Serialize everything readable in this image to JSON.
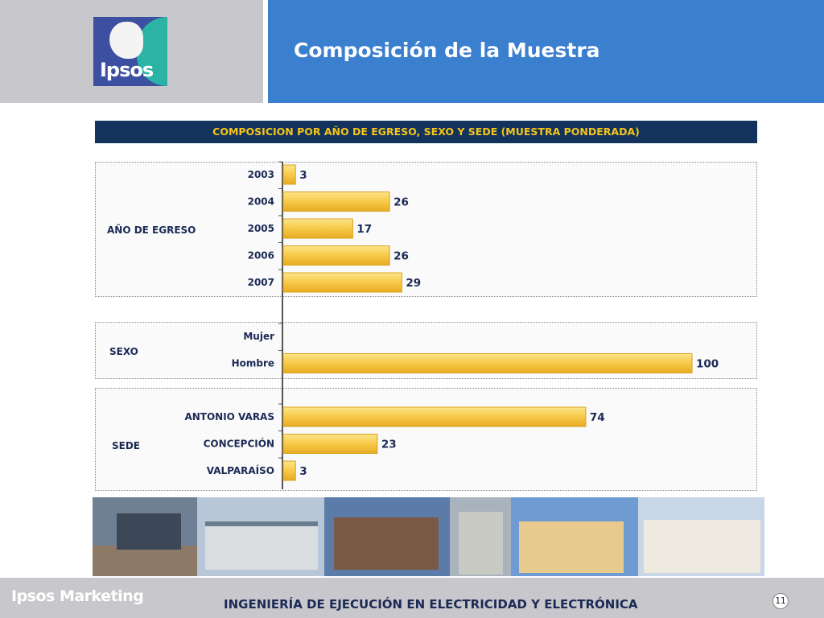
{
  "header": {
    "logo_text": "Ipsos",
    "title": "Composición de la Muestra"
  },
  "chart_title": "COMPOSICION POR  AÑO DE EGRESO, SEXO Y SEDE (MUESTRA PONDERADA)",
  "colors": {
    "bar": "#f7c948",
    "bar_edge": "#d9a21c",
    "banner": "#13335d",
    "banner_text": "#f5c518",
    "header_blue": "#3b7fcf"
  },
  "chart_data": {
    "type": "bar",
    "orientation": "horizontal",
    "xlim": [
      0,
      100
    ],
    "groups": [
      {
        "name": "AÑO  DE EGRESO",
        "categories": [
          "2003",
          "2004",
          "2005",
          "2006",
          "2007"
        ],
        "values": [
          3,
          26,
          17,
          26,
          29
        ]
      },
      {
        "name": "SEXO",
        "categories": [
          "Mujer",
          "Hombre"
        ],
        "values": [
          null,
          100
        ]
      },
      {
        "name": "SEDE",
        "categories": [
          "ANTONIO VARAS",
          "CONCEPCIÓN",
          "VALPARAÍSO"
        ],
        "values": [
          74,
          23,
          3
        ]
      }
    ]
  },
  "footer": {
    "brand": "Ipsos Marketing",
    "title": "INGENIERÍA DE EJECUCIÓN EN ELECTRICIDAD Y ELECTRÓNICA",
    "page_number": "11"
  }
}
